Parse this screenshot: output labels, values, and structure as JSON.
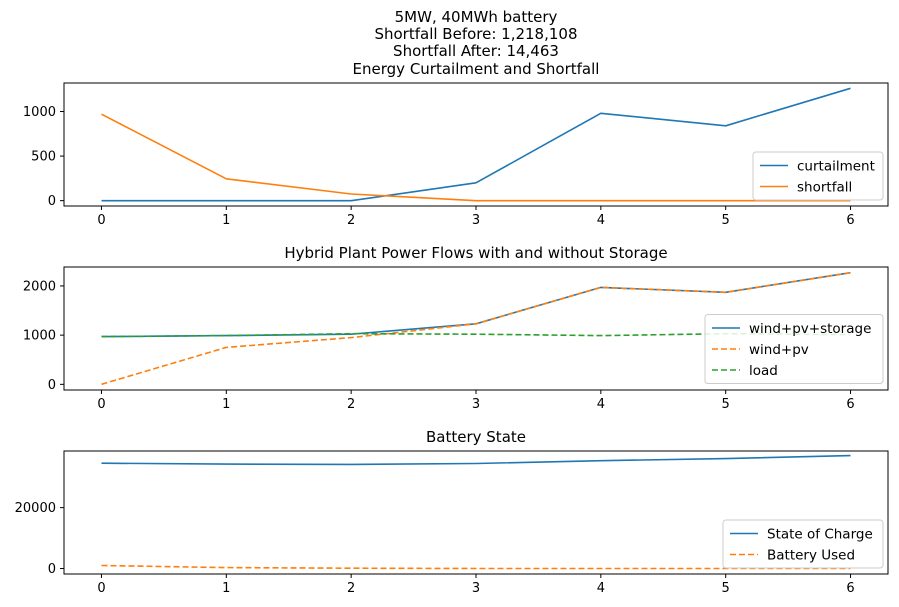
{
  "figure": {
    "suptitle_lines": [
      "5MW, 40MWh battery",
      "Shortfall Before: 1,218,108",
      "Shortfall After: 14,463"
    ]
  },
  "chart_data": [
    {
      "type": "line",
      "title": "Energy Curtailment and Shortfall",
      "xlabel": "",
      "ylabel": "",
      "x": [
        0,
        1,
        2,
        3,
        4,
        5,
        6
      ],
      "xlim": [
        -0.3,
        6.3
      ],
      "ylim": [
        -60,
        1320
      ],
      "xticks": [
        0,
        1,
        2,
        3,
        4,
        5,
        6
      ],
      "yticks": [
        0,
        500,
        1000
      ],
      "grid": false,
      "legend": "lower-right",
      "series": [
        {
          "name": "curtailment",
          "color": "#1f77b4",
          "dash": "solid",
          "values": [
            0,
            0,
            0,
            200,
            980,
            840,
            1260
          ]
        },
        {
          "name": "shortfall",
          "color": "#ff7f0e",
          "dash": "solid",
          "values": [
            970,
            245,
            75,
            0,
            0,
            0,
            0
          ]
        }
      ]
    },
    {
      "type": "line",
      "title": "Hybrid Plant Power Flows with and without Storage",
      "xlabel": "",
      "ylabel": "",
      "x": [
        0,
        1,
        2,
        3,
        4,
        5,
        6
      ],
      "xlim": [
        -0.3,
        6.3
      ],
      "ylim": [
        -115,
        2385
      ],
      "xticks": [
        0,
        1,
        2,
        3,
        4,
        5,
        6
      ],
      "yticks": [
        0,
        1000,
        2000
      ],
      "grid": false,
      "legend": "right",
      "series": [
        {
          "name": "wind+pv+storage",
          "color": "#1f77b4",
          "dash": "solid",
          "values": [
            970,
            990,
            1020,
            1230,
            1970,
            1870,
            2270
          ]
        },
        {
          "name": "wind+pv",
          "color": "#ff7f0e",
          "dash": "dashed",
          "values": [
            0,
            750,
            950,
            1230,
            1970,
            1870,
            2270
          ]
        },
        {
          "name": "load",
          "color": "#2ca02c",
          "dash": "dashed",
          "values": [
            970,
            990,
            1030,
            1020,
            990,
            1030,
            1010
          ]
        }
      ]
    },
    {
      "type": "line",
      "title": "Battery State",
      "xlabel": "",
      "ylabel": "",
      "x": [
        0,
        1,
        2,
        3,
        4,
        5,
        6
      ],
      "xlim": [
        -0.3,
        6.3
      ],
      "ylim": [
        -1800,
        38600
      ],
      "xticks": [
        0,
        1,
        2,
        3,
        4,
        5,
        6
      ],
      "yticks": [
        0,
        20000
      ],
      "grid": false,
      "legend": "lower-right",
      "series": [
        {
          "name": "State of Charge",
          "color": "#1f77b4",
          "dash": "solid",
          "values": [
            34600,
            34300,
            34200,
            34500,
            35400,
            36100,
            37100
          ]
        },
        {
          "name": "Battery Used",
          "color": "#ff7f0e",
          "dash": "dashed",
          "values": [
            1000,
            300,
            100,
            0,
            0,
            0,
            0
          ]
        }
      ]
    }
  ]
}
